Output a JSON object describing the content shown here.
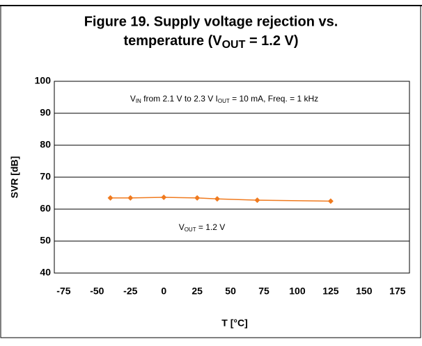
{
  "chart_data": {
    "type": "line",
    "title": {
      "line1": "Figure 19. Supply voltage rejection vs.",
      "line2": [
        "temperature (V",
        "OUT",
        " = 1.2 V)"
      ]
    },
    "x_label": "T [°C]",
    "y_label": "SVR [dB]",
    "annotations": [
      [
        "V",
        "IN",
        " from 2.1 V to 2.3 V I",
        "OUT",
        " = 10 mA, Freq. = 1 kHz"
      ],
      [
        "V",
        "OUT",
        " = 1.2 V"
      ]
    ],
    "x": [
      -40,
      -25,
      0,
      25,
      40,
      70,
      125
    ],
    "series": [
      {
        "color": "#f07a1e",
        "values": [
          63.5,
          63.5,
          63.7,
          63.5,
          63.2,
          62.8,
          62.5
        ]
      }
    ],
    "xlim": [
      -82,
      184
    ],
    "xticks": [
      -75,
      -50,
      -25,
      0,
      25,
      50,
      75,
      100,
      125,
      150,
      175
    ],
    "ylim": [
      40,
      100
    ],
    "yticks": [
      40,
      50,
      60,
      70,
      80,
      90,
      100
    ],
    "grid": true
  }
}
